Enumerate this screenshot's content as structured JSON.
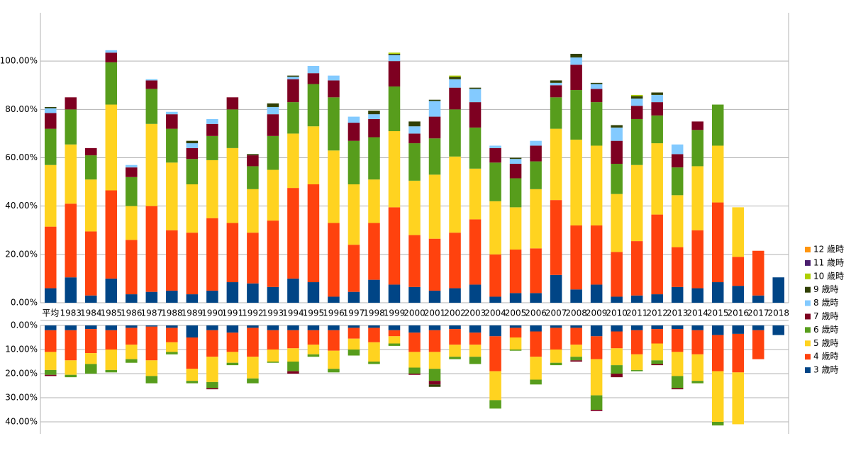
{
  "chart_data": [
    {
      "type": "bar",
      "categories": [
        "平均",
        "1983",
        "1984",
        "1985",
        "1986",
        "1987",
        "1988",
        "1989",
        "1990",
        "1991",
        "1992",
        "1993",
        "1994",
        "1995",
        "1996",
        "1997",
        "1998",
        "1999",
        "2000",
        "2001",
        "2002",
        "2003",
        "2004",
        "2005",
        "2006",
        "2007",
        "2008",
        "2009",
        "2010",
        "2011",
        "2012",
        "2013",
        "2014",
        "2015",
        "2016",
        "2017",
        "2018"
      ],
      "ylim": [
        0,
        120
      ],
      "yticks": [
        {
          "value": 0,
          "label": "0.00%"
        },
        {
          "value": 20,
          "label": "20.00%"
        },
        {
          "value": 40,
          "label": "40.00%"
        },
        {
          "value": 60,
          "label": "60.00%"
        },
        {
          "value": 80,
          "label": "80.00%"
        },
        {
          "value": 100,
          "label": "100.00%"
        }
      ],
      "grid": true,
      "series": [
        {
          "name": "3 歳時",
          "color": "#004586",
          "values": [
            6,
            10.5,
            3,
            10,
            3.5,
            4.5,
            5,
            3.5,
            5,
            8.5,
            8,
            6.5,
            10,
            8.5,
            2.5,
            4.5,
            9.5,
            7.5,
            6.5,
            5,
            6,
            7.5,
            2.5,
            4,
            4,
            11.5,
            5.5,
            7.5,
            2.5,
            3,
            3.5,
            6.5,
            6,
            8.5,
            7,
            3,
            10.5
          ]
        },
        {
          "name": "4 歳時",
          "color": "#ff420e",
          "values": [
            25.5,
            30.5,
            26.5,
            36.5,
            22.5,
            35.5,
            25,
            25.5,
            30,
            24.5,
            21,
            27.5,
            37.5,
            40.5,
            30.5,
            19.5,
            23.5,
            32,
            21.5,
            21.5,
            23,
            27,
            17.5,
            18,
            18.5,
            31,
            26.5,
            24.5,
            18.5,
            22.5,
            33,
            16.5,
            24,
            33,
            12,
            18.5,
            0
          ]
        },
        {
          "name": "5 歳時",
          "color": "#ffd320",
          "values": [
            25.5,
            24.5,
            21.5,
            35.5,
            14,
            34,
            28,
            20,
            24,
            31,
            18,
            21,
            22.5,
            24,
            30,
            25,
            18,
            31.5,
            22.5,
            26.5,
            31.5,
            21,
            22,
            17.5,
            24.5,
            29.5,
            35.5,
            33,
            24,
            31.5,
            29.5,
            21.5,
            26.5,
            23.5,
            20.5,
            0,
            0
          ]
        },
        {
          "name": "6 歳時",
          "color": "#579d1c",
          "values": [
            15,
            14.5,
            10,
            17.5,
            12,
            14.5,
            14,
            10.5,
            10,
            16,
            9.5,
            14,
            13,
            17.5,
            22,
            18,
            17.5,
            18.5,
            15.5,
            15,
            19.5,
            17,
            16,
            12,
            11.5,
            13,
            20.5,
            18,
            12.5,
            19,
            11.5,
            11.5,
            15,
            17,
            0,
            0,
            0
          ]
        },
        {
          "name": "7 歳時",
          "color": "#7e0021",
          "values": [
            6.5,
            5,
            3,
            4,
            4,
            3.5,
            6,
            4.5,
            5,
            5,
            4.5,
            9,
            9.5,
            4.5,
            7,
            7.5,
            7.5,
            10.5,
            4,
            9,
            9,
            10.5,
            6,
            6,
            6.5,
            5,
            10.5,
            5.5,
            9.5,
            5.5,
            5.5,
            5.5,
            3.5,
            0,
            0,
            0,
            0
          ]
        },
        {
          "name": "8 歳時",
          "color": "#83caff",
          "values": [
            2,
            0,
            0,
            1,
            1,
            0.5,
            1,
            2,
            2,
            0,
            0,
            3,
            1,
            3,
            2,
            2.5,
            2,
            2.5,
            3,
            6.5,
            3.5,
            5.5,
            1,
            2,
            2,
            1,
            3,
            2,
            5.5,
            3,
            3,
            4,
            0,
            0,
            0,
            0,
            0
          ]
        },
        {
          "name": "9 歳時",
          "color": "#314004",
          "values": [
            0.5,
            0,
            0,
            0,
            0,
            0,
            0,
            1,
            0,
            0,
            0.5,
            1.5,
            0.5,
            0,
            0,
            0,
            1.5,
            0.5,
            2,
            0.5,
            1,
            0.5,
            0,
            0.5,
            0,
            1,
            1.5,
            0.5,
            1,
            1,
            1,
            0,
            0,
            0,
            0,
            0,
            0
          ]
        },
        {
          "name": "10 歳時",
          "color": "#aecf00",
          "values": [
            0,
            0,
            0,
            0,
            0,
            0,
            0,
            0,
            0,
            0,
            0,
            0,
            0,
            0,
            0,
            0,
            0,
            0.5,
            0,
            0,
            0.5,
            0,
            0,
            0,
            0,
            0,
            0,
            0,
            0,
            0.5,
            0,
            0,
            0,
            0,
            0,
            0,
            0
          ]
        },
        {
          "name": "11 歳時",
          "color": "#4b1f6f",
          "values": [
            0,
            0,
            0,
            0,
            0,
            0,
            0,
            0,
            0,
            0,
            0,
            0,
            0,
            0,
            0,
            0,
            0,
            0,
            0,
            0,
            0,
            0,
            0,
            0,
            0,
            0,
            0,
            0,
            0,
            0,
            0,
            0,
            0,
            0,
            0,
            0,
            0
          ]
        },
        {
          "name": "12 歳時",
          "color": "#ff950e",
          "values": [
            0,
            0,
            0,
            0,
            0,
            0,
            0,
            0,
            0,
            0,
            0,
            0,
            0,
            0,
            0,
            0,
            0,
            0,
            0,
            0,
            0,
            0,
            0,
            0,
            0,
            0,
            0,
            0,
            0,
            0,
            0,
            0,
            0,
            0,
            0,
            0,
            0
          ]
        }
      ]
    },
    {
      "type": "bar",
      "inverted": true,
      "ylim": [
        0,
        45
      ],
      "yticks": [
        {
          "value": 0,
          "label": "0.00%"
        },
        {
          "value": 10,
          "label": "10.00%"
        },
        {
          "value": 20,
          "label": "20.00%"
        },
        {
          "value": 30,
          "label": "30.00%"
        },
        {
          "value": 40,
          "label": "40.00%"
        }
      ],
      "grid": true,
      "series": [
        {
          "values": [
            2,
            2,
            1.5,
            2,
            1,
            0.5,
            1,
            5,
            2,
            3,
            1,
            2,
            2,
            2,
            2,
            1,
            1,
            2,
            3,
            2,
            1.5,
            3,
            4.5,
            1,
            2.5,
            1,
            1,
            4.5,
            2.5,
            2,
            1.5,
            1.5,
            2,
            4,
            3.5,
            2,
            4
          ]
        },
        {
          "values": [
            9,
            12.5,
            10,
            8,
            7,
            14,
            6,
            13,
            11,
            8,
            12,
            8,
            7.5,
            6,
            8.5,
            4.5,
            6,
            2.5,
            8,
            9,
            6.5,
            5,
            14.5,
            4,
            10.5,
            9,
            7,
            9.5,
            7,
            10,
            6,
            9.5,
            10,
            15,
            16,
            12,
            0
          ]
        },
        {
          "values": [
            7.5,
            6,
            4.5,
            8.5,
            6,
            6.5,
            4,
            5,
            10.5,
            4.5,
            9,
            5,
            5.5,
            4,
            7.5,
            4.5,
            8,
            3,
            6.5,
            7,
            5,
            5,
            12,
            5,
            9.5,
            5.5,
            5,
            15,
            7,
            6.5,
            7,
            10,
            11,
            21,
            21.5,
            0,
            0
          ]
        },
        {
          "values": [
            2,
            1,
            4,
            1,
            1.5,
            3,
            1,
            1,
            2.5,
            1,
            2,
            0.5,
            4,
            1,
            1.5,
            2.5,
            1,
            1,
            2.5,
            5,
            1,
            3,
            3.5,
            0.5,
            2,
            1,
            1.5,
            6,
            3.5,
            0.5,
            1.5,
            5,
            1,
            1.5,
            0,
            0,
            0
          ]
        },
        {
          "values": [
            0.5,
            0,
            0,
            0,
            0,
            0,
            0,
            0,
            0.5,
            0,
            0,
            0,
            1,
            0,
            0,
            0,
            0,
            0,
            0.5,
            1.5,
            0,
            0,
            0,
            0,
            0,
            0,
            0.5,
            0.5,
            1.5,
            0,
            0.5,
            0.5,
            0,
            0,
            0,
            0,
            0
          ]
        },
        {
          "values": [
            0,
            0,
            0,
            0,
            0,
            0,
            0,
            0,
            0,
            0,
            0,
            0,
            0,
            0,
            0,
            0,
            0,
            0,
            0,
            0,
            0,
            0,
            0,
            0,
            0,
            0,
            0,
            0,
            0,
            0,
            0,
            0,
            0,
            0,
            0,
            0,
            0
          ]
        },
        {
          "values": [
            0,
            0,
            0,
            0,
            0,
            0,
            0,
            0,
            0,
            0,
            0,
            0,
            0,
            0,
            0,
            0,
            0,
            0,
            0,
            1,
            0,
            0,
            0,
            0,
            0,
            0,
            0,
            0,
            0,
            0,
            0,
            0,
            0,
            0,
            0,
            0,
            0
          ]
        },
        {
          "values": [
            0,
            0,
            0,
            0,
            0,
            0,
            0,
            0,
            0,
            0,
            0,
            0,
            0,
            0,
            0,
            0,
            0,
            0,
            0,
            0,
            0,
            0,
            0,
            0,
            0,
            0,
            0,
            0,
            0,
            0,
            0,
            0,
            0,
            0,
            0,
            0,
            0
          ]
        },
        {
          "values": [
            0,
            0,
            0,
            0,
            0,
            0,
            0,
            0,
            0,
            0,
            0,
            0,
            0,
            0,
            0,
            0,
            0,
            0,
            0,
            0,
            0,
            0,
            0,
            0,
            0,
            0,
            0,
            0,
            0,
            0,
            0,
            0,
            0,
            0,
            0,
            0,
            0
          ]
        },
        {
          "values": [
            0,
            0,
            0,
            0,
            0,
            0,
            0,
            0,
            0,
            0,
            0,
            0,
            0,
            0,
            0,
            0,
            0,
            0,
            0,
            0,
            0,
            0,
            0,
            0,
            0,
            0,
            0,
            0,
            0,
            0,
            0,
            0,
            0,
            0,
            0,
            0,
            0
          ]
        }
      ]
    }
  ]
}
